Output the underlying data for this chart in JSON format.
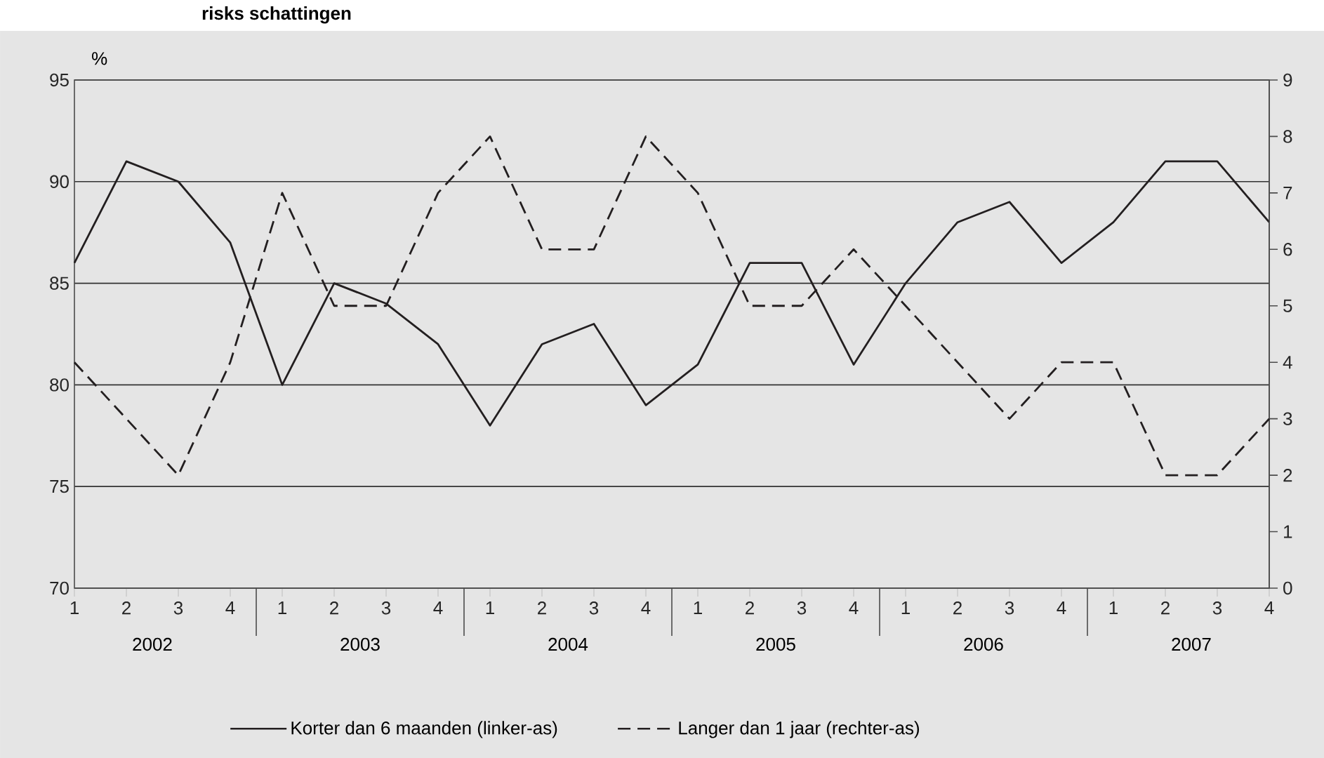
{
  "chart_data": {
    "type": "line",
    "title": "risks schattingen",
    "ylabel": "%",
    "categories": [
      "1",
      "2",
      "3",
      "4",
      "1",
      "2",
      "3",
      "4",
      "1",
      "2",
      "3",
      "4",
      "1",
      "2",
      "3",
      "4",
      "1",
      "2",
      "3",
      "4",
      "1",
      "2",
      "3",
      "4"
    ],
    "annotations": [
      "2002",
      "2003",
      "2004",
      "2005",
      "2006",
      "2007"
    ],
    "series": [
      {
        "name": "Korter dan 6 maanden (linker-as)",
        "color": "#231f20",
        "line_style": "solid",
        "values": [
          86,
          91,
          90,
          87,
          80,
          85,
          84,
          82,
          78,
          82,
          83,
          79,
          81,
          86,
          86,
          81,
          85,
          88,
          89,
          86,
          88,
          91,
          91,
          88
        ]
      },
      {
        "name": "Langer dan 1 jaar (rechter-as)",
        "color": "#231f20",
        "line_style": "dashed",
        "axis": "y2",
        "values": [
          4,
          3,
          2,
          4,
          7,
          5,
          5,
          7,
          8,
          6,
          6,
          8,
          7,
          5,
          5,
          6,
          5,
          4,
          3,
          4,
          4,
          2,
          2,
          3
        ]
      }
    ],
    "ylim": [
      70,
      95
    ],
    "yticks": [
      70,
      75,
      80,
      85,
      90,
      95
    ],
    "y2lim": [
      0,
      9
    ],
    "y2ticks": [
      0,
      1,
      2,
      3,
      4,
      5,
      6,
      7,
      8,
      9
    ],
    "grid": "y",
    "legend": "bottom",
    "marker": "none"
  }
}
